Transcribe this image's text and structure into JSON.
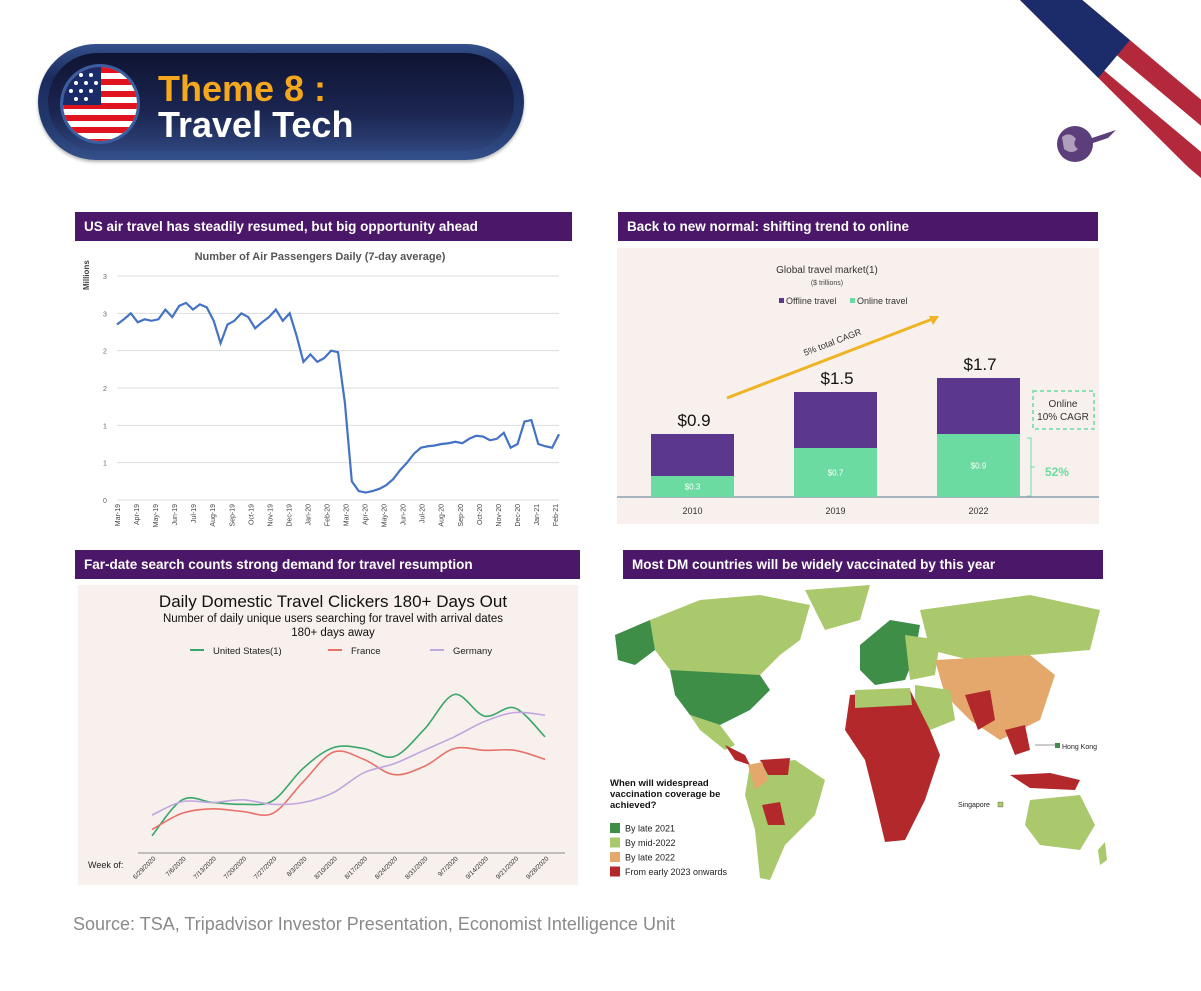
{
  "banner": {
    "theme": "Theme 8 :",
    "title": "Travel Tech",
    "flag_icon": "us-flag-icon"
  },
  "panels": [
    {
      "header": "US air travel has steadily resumed, but big opportunity ahead"
    },
    {
      "header": "Back to new normal: shifting trend to online"
    },
    {
      "header": "Far-date search counts strong demand for travel resumption"
    },
    {
      "header": "Most DM countries will be widely vaccinated by this year"
    }
  ],
  "source": "Source: TSA, Tripadvisor Investor Presentation, Economist Intelligence Unit",
  "colors": {
    "header_purple": "#4b1768",
    "theme_orange": "#f5a81c",
    "banner_navy": "#1b2550"
  },
  "chart_data": [
    {
      "type": "line",
      "title": "Number of Air Passengers Daily (7-day average)",
      "ylabel": "Millions",
      "ylim": [
        0,
        3
      ],
      "y_tick_labels": [
        "0",
        "1",
        "1",
        "2",
        "2",
        "3",
        "3"
      ],
      "x_tick_labels": [
        "Mar-19",
        "Apr-19",
        "May-19",
        "Jun-19",
        "Jul-19",
        "Aug-19",
        "Sep-19",
        "Oct-19",
        "Nov-19",
        "Dec-19",
        "Jan-20",
        "Feb-20",
        "Mar-20",
        "Apr-20",
        "May-20",
        "Jun-20",
        "Jul-20",
        "Aug-20",
        "Sep-20",
        "Oct-20",
        "Nov-20",
        "Dec-20",
        "Jan-21",
        "Feb-21"
      ],
      "grid": true,
      "color": "#4472c4",
      "series": [
        {
          "values": [
            2.35,
            2.42,
            2.5,
            2.38,
            2.42,
            2.4,
            2.42,
            2.55,
            2.45,
            2.6,
            2.64,
            2.55,
            2.62,
            2.58,
            2.4,
            2.1,
            2.35,
            2.4,
            2.5,
            2.45,
            2.3,
            2.38,
            2.45,
            2.55,
            2.4,
            2.5,
            2.2,
            1.85,
            1.95,
            1.85,
            1.9,
            2.0,
            1.98,
            1.3,
            0.25,
            0.12,
            0.1,
            0.12,
            0.15,
            0.2,
            0.28,
            0.4,
            0.5,
            0.62,
            0.7,
            0.72,
            0.73,
            0.75,
            0.76,
            0.78,
            0.76,
            0.82,
            0.86,
            0.85,
            0.8,
            0.82,
            0.9,
            0.7,
            0.75,
            1.05,
            1.07,
            0.75,
            0.72,
            0.7,
            0.88
          ]
        }
      ]
    },
    {
      "type": "bar",
      "stacked": true,
      "title": "Global travel market(1)",
      "subtitle": "($ trillions)",
      "categories": [
        "2010",
        "2019",
        "2022"
      ],
      "series": [
        {
          "name": "Offline travel",
          "values": [
            0.6,
            0.8,
            0.8
          ],
          "color": "#5b378e"
        },
        {
          "name": "Online travel",
          "values": [
            0.3,
            0.7,
            0.9
          ],
          "color": "#6bdba2"
        }
      ],
      "total_labels": [
        "$0.9",
        "$1.5",
        "$1.7"
      ],
      "online_labels": [
        "$0.3",
        "$0.7",
        "$0.9"
      ],
      "legend": "top",
      "annotations": {
        "cagr_arrow": "5% total CAGR",
        "online_box_line1": "Online",
        "online_box_line2": "10% CAGR",
        "share": "52%"
      }
    },
    {
      "type": "line",
      "title": "Daily Domestic Travel Clickers 180+ Days Out",
      "subtitle_line1": "Number of daily unique users searching for travel with arrival dates",
      "subtitle_line2": "180+ days away",
      "x_axis_prefix": "Week of:",
      "categories": [
        "6/29/2020",
        "7/6/2020",
        "7/13/2020",
        "7/20/2020",
        "7/27/2020",
        "8/3/2020",
        "8/10/2020",
        "8/17/2020",
        "8/24/2020",
        "8/31/2020",
        "9/7/2020",
        "9/14/2020",
        "9/21/2020",
        "9/28/2020"
      ],
      "legend": "top",
      "series": [
        {
          "name": "United States(1)",
          "color": "#3aa66a",
          "values": [
            8,
            48,
            45,
            43,
            47,
            83,
            106,
            105,
            96,
            126,
            165,
            141,
            150,
            118
          ]
        },
        {
          "name": "France",
          "color": "#e8716a",
          "values": [
            15,
            33,
            38,
            35,
            33,
            68,
            101,
            93,
            76,
            85,
            105,
            103,
            103,
            93
          ]
        },
        {
          "name": "Germany",
          "color": "#c1a6df",
          "values": [
            31,
            46,
            45,
            48,
            43,
            45,
            56,
            78,
            88,
            103,
            118,
            135,
            145,
            142
          ]
        }
      ]
    },
    {
      "type": "map",
      "legend_title": "When will widespread vaccination coverage be achieved?",
      "legend": [
        {
          "label": "By late 2021",
          "color": "#3e8e47"
        },
        {
          "label": "By mid-2022",
          "color": "#a9c96c"
        },
        {
          "label": "By late 2022",
          "color": "#e4a86c"
        },
        {
          "label": "From early 2023 onwards",
          "color": "#b3282b"
        }
      ],
      "callouts": [
        "Hong Kong",
        "Singapore"
      ]
    }
  ]
}
